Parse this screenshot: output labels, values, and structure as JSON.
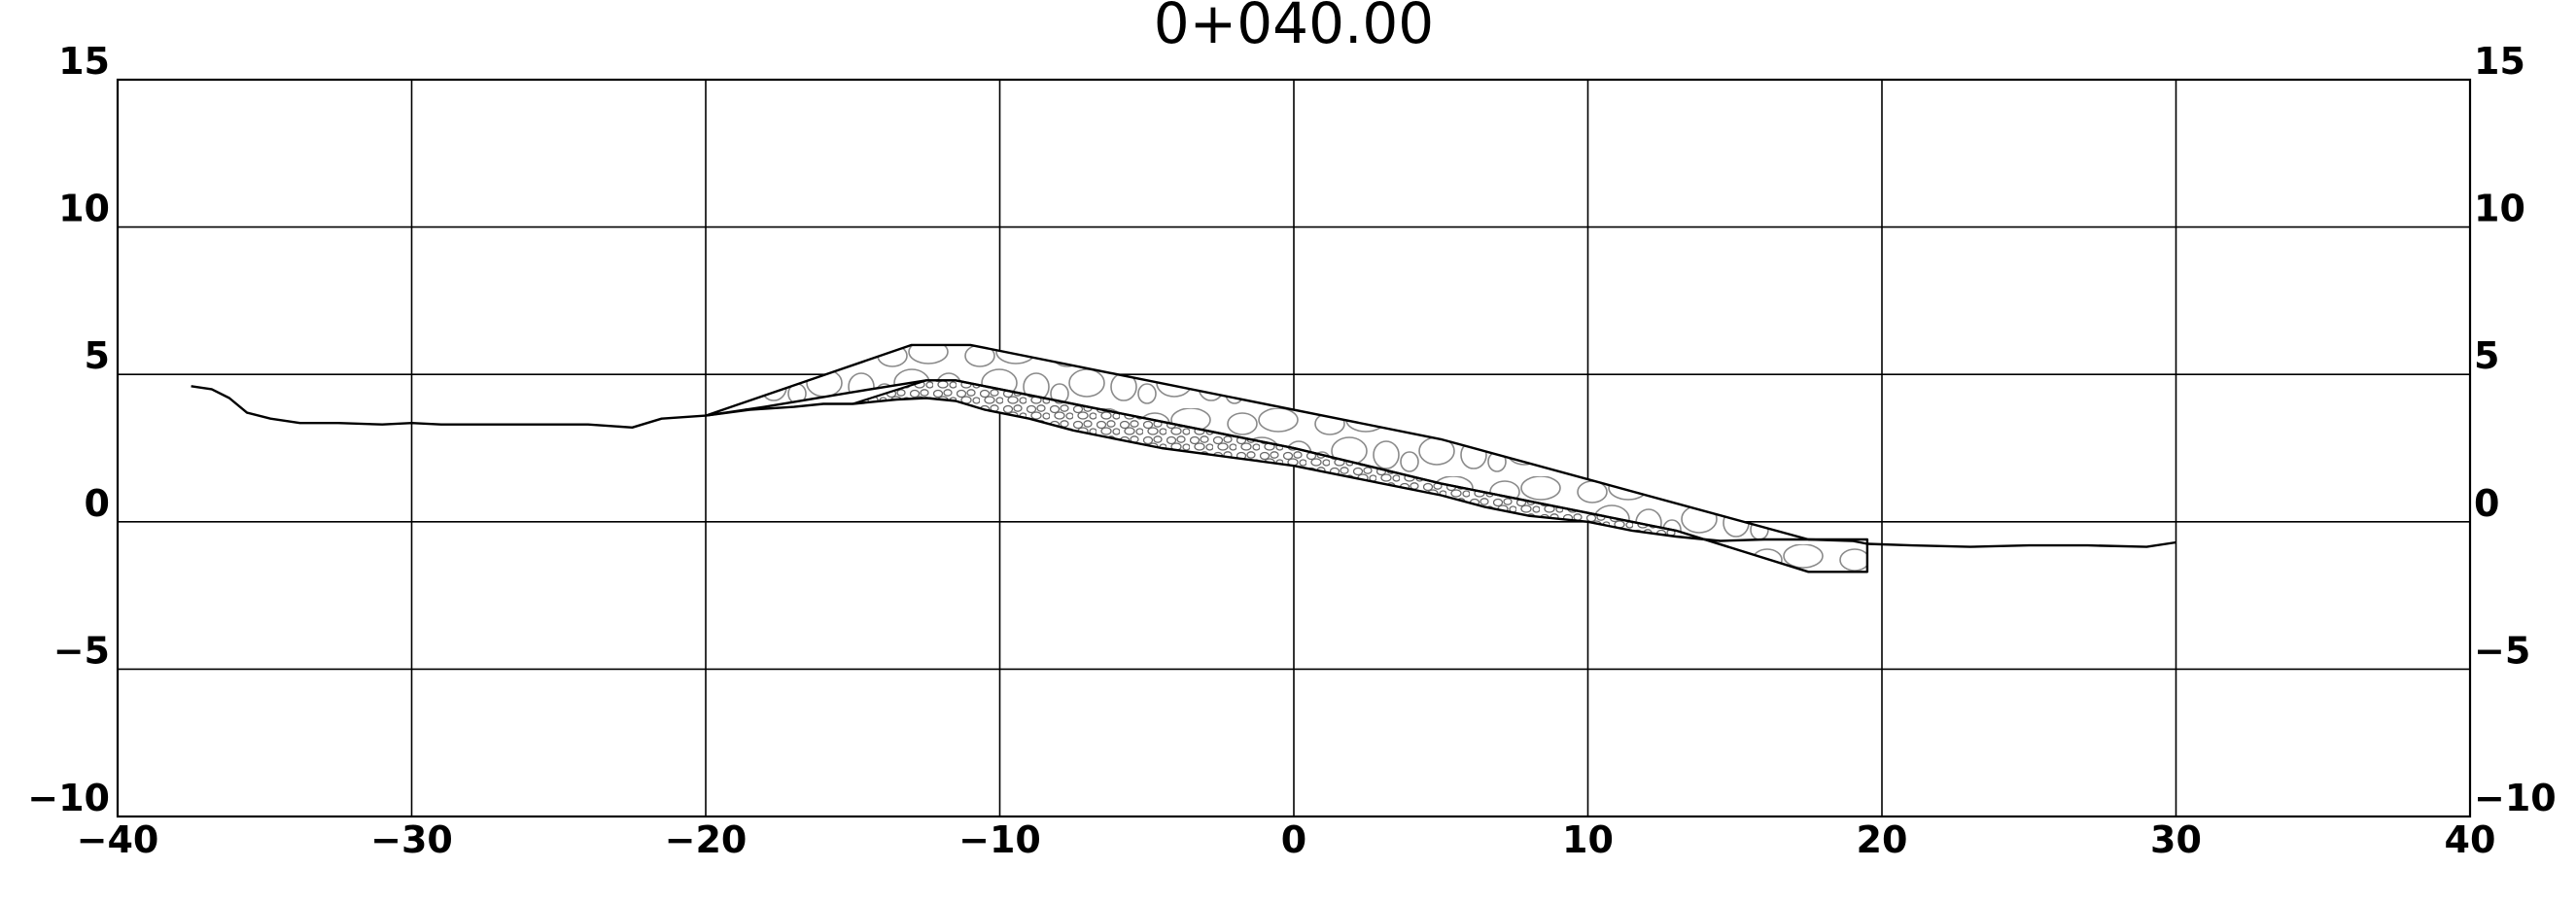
{
  "drawing": {
    "title": "0+040.00"
  },
  "chart_data": {
    "type": "line",
    "title": "0+040.00",
    "xlim": [
      -40,
      40
    ],
    "ylim": [
      -10,
      15
    ],
    "grid": true,
    "x_ticks": [
      -40,
      -30,
      -20,
      -10,
      0,
      10,
      20,
      30,
      40
    ],
    "x_tick_labels": [
      "−40",
      "−30",
      "−20",
      "−10",
      "0",
      "10",
      "20",
      "30",
      "40"
    ],
    "y_ticks": [
      15,
      10,
      5,
      0,
      -5,
      -10
    ],
    "y_tick_labels": [
      "15",
      "10",
      "5",
      "0",
      "−5",
      "−10"
    ],
    "series": [
      {
        "role": "ground",
        "x": [
          -37.5,
          -36.8,
          -36.2,
          -35.6,
          -34.8,
          -33.8,
          -32.5,
          -31,
          -30,
          -29,
          -27.5,
          -26,
          -24,
          -22.5,
          -21.5,
          -20,
          -18.5,
          -17,
          -16,
          -15,
          -13.5,
          -12.5,
          -11.5,
          -10.5,
          -9,
          -7.5,
          -6,
          -4.5,
          -3,
          -1.5,
          0,
          1.5,
          3,
          5,
          6.5,
          8,
          10,
          11.5,
          13,
          14.5,
          16,
          17.5,
          19,
          19.5,
          21,
          23,
          25,
          27,
          29,
          30
        ],
        "y": [
          4.6,
          4.5,
          4.2,
          3.7,
          3.5,
          3.35,
          3.35,
          3.3,
          3.35,
          3.3,
          3.3,
          3.3,
          3.3,
          3.2,
          3.5,
          3.6,
          3.8,
          3.9,
          4.0,
          4.0,
          4.15,
          4.2,
          4.1,
          3.8,
          3.5,
          3.1,
          2.8,
          2.5,
          2.3,
          2.1,
          1.9,
          1.6,
          1.3,
          0.9,
          0.5,
          0.2,
          0.0,
          -0.3,
          -0.5,
          -0.65,
          -0.6,
          -0.6,
          -0.65,
          -0.75,
          -0.8,
          -0.85,
          -0.8,
          -0.8,
          -0.85,
          -0.7
        ]
      },
      {
        "role": "embankment-outline",
        "x": [
          -20,
          -13,
          -11,
          5,
          17.5,
          19.5,
          19.5,
          17.5,
          13,
          5,
          0,
          -5,
          -11.5,
          -12.5,
          -15,
          -18,
          -20
        ],
        "y": [
          3.6,
          6.0,
          6.0,
          2.8,
          -0.6,
          -0.6,
          -1.7,
          -1.7,
          -0.3,
          1.3,
          2.5,
          3.5,
          4.8,
          4.8,
          4.4,
          3.9,
          3.6
        ]
      },
      {
        "role": "filter-layer-top",
        "x": [
          -15,
          -12.5,
          -11.5,
          -5,
          0,
          5,
          13
        ],
        "y": [
          4.0,
          4.8,
          4.8,
          3.5,
          2.5,
          1.3,
          -0.3
        ]
      }
    ]
  }
}
